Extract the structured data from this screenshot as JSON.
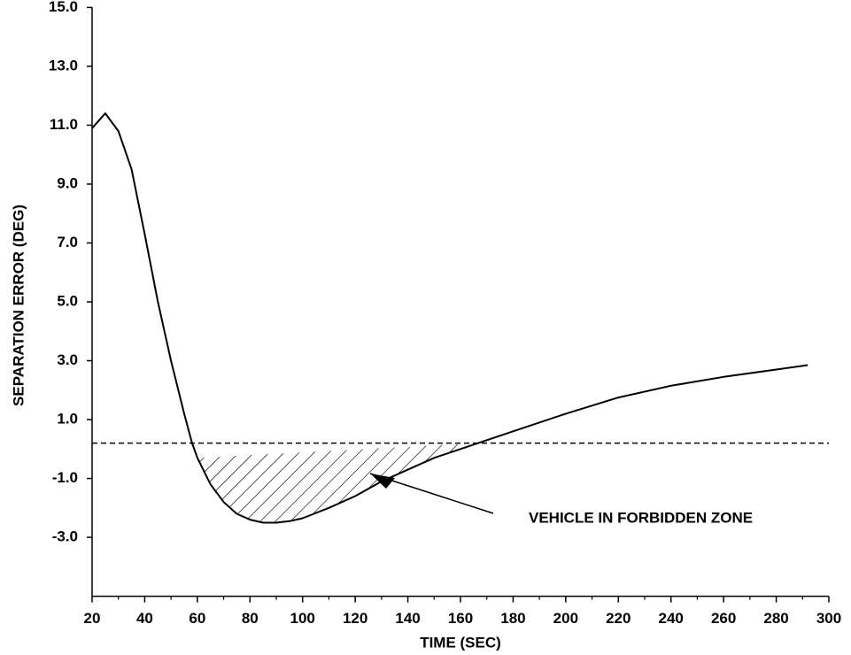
{
  "chart_data": {
    "type": "line",
    "x_label": "TIME (SEC)",
    "y_label": "SEPARATION ERROR (DEG)",
    "x": [
      20,
      25,
      30,
      35,
      40,
      45,
      50,
      55,
      58,
      60,
      65,
      70,
      75,
      80,
      85,
      90,
      95,
      100,
      110,
      120,
      130,
      140,
      150,
      160,
      170,
      180,
      200,
      220,
      240,
      260,
      280,
      292
    ],
    "values": [
      10.9,
      11.4,
      10.8,
      9.5,
      7.3,
      5.0,
      3.0,
      1.2,
      0.2,
      -0.3,
      -1.2,
      -1.8,
      -2.2,
      -2.4,
      -2.5,
      -2.5,
      -2.45,
      -2.35,
      -2.0,
      -1.6,
      -1.1,
      -0.7,
      -0.3,
      0.0,
      0.3,
      0.6,
      1.2,
      1.75,
      2.15,
      2.45,
      2.7,
      2.85
    ],
    "color": "#000000",
    "threshold": 0.2,
    "annotation": "VEHICLE IN FORBIDDEN ZONE",
    "xlim": [
      20,
      300
    ],
    "xticks": [
      20,
      40,
      60,
      80,
      100,
      120,
      140,
      160,
      180,
      200,
      220,
      240,
      260,
      280,
      300
    ],
    "xminor_ticks": [
      30,
      50,
      70,
      90,
      110,
      130,
      150,
      170,
      190,
      210,
      230,
      250,
      270,
      290
    ],
    "ylim": [
      -5,
      15
    ],
    "yticks": [
      {
        "value": 15,
        "label": "15.0"
      },
      {
        "value": 13,
        "label": "13.0"
      },
      {
        "value": 11,
        "label": "11.0"
      },
      {
        "value": 9,
        "label": "9.0"
      },
      {
        "value": 7,
        "label": "7.0"
      },
      {
        "value": 5,
        "label": "5.0"
      },
      {
        "value": 3,
        "label": "3.0"
      },
      {
        "value": 1,
        "label": "1.0"
      },
      {
        "value": -1,
        "label": "-1.0"
      },
      {
        "value": -3,
        "label": "-3.0"
      }
    ]
  }
}
